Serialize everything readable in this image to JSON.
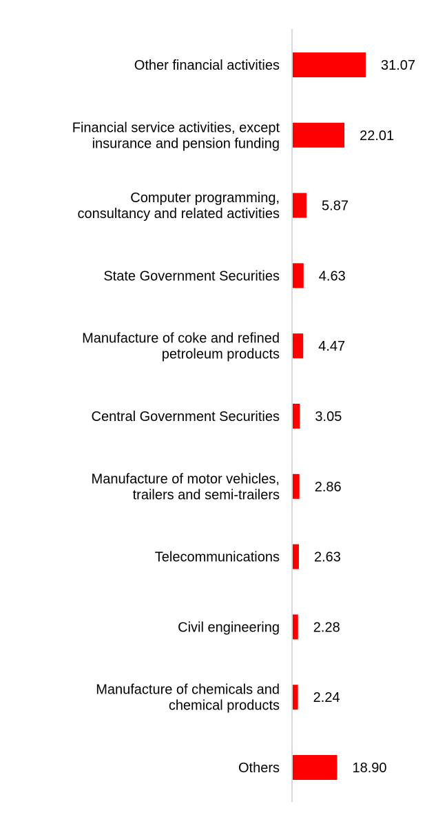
{
  "chart_data": {
    "type": "bar",
    "orientation": "horizontal",
    "categories": [
      [
        "Other financial activities"
      ],
      [
        "Financial service activities, except",
        "insurance and pension funding"
      ],
      [
        "Computer programming,",
        "consultancy and related activities"
      ],
      [
        "State Government Securities"
      ],
      [
        "Manufacture of coke and refined",
        "petroleum products"
      ],
      [
        "Central Government Securities"
      ],
      [
        "Manufacture of motor vehicles,",
        "trailers and semi-trailers"
      ],
      [
        "Telecommunications"
      ],
      [
        "Civil engineering"
      ],
      [
        "Manufacture of chemicals and",
        "chemical products"
      ],
      [
        "Others"
      ]
    ],
    "values": [
      31.07,
      22.01,
      5.87,
      4.63,
      4.47,
      3.05,
      2.86,
      2.63,
      2.28,
      2.24,
      18.9
    ],
    "value_labels": [
      "31.07",
      "22.01",
      "5.87",
      "4.63",
      "4.47",
      "3.05",
      "2.86",
      "2.63",
      "2.28",
      "2.24",
      "18.90"
    ],
    "bar_color": "#ff0000",
    "axis_color": "#d9d9d9",
    "title": "",
    "xlabel": "",
    "ylabel": "",
    "xlim": [
      0,
      31.07
    ],
    "grid": false,
    "legend": "none"
  }
}
